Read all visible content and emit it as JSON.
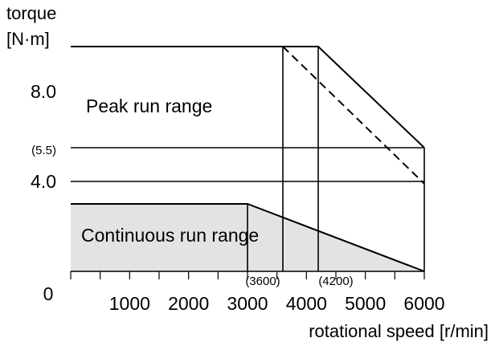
{
  "chart_data": {
    "type": "line",
    "ylabel_line1": "torque",
    "ylabel_line2": "[N·m]",
    "xlabel": "rotational speed [r/min]",
    "xlim": [
      0,
      6000
    ],
    "ylim": [
      0,
      10
    ],
    "x_ticks": [
      {
        "value": 1000,
        "label": "1000"
      },
      {
        "value": 2000,
        "label": "2000"
      },
      {
        "value": 3000,
        "label": "3000"
      },
      {
        "value": 4000,
        "label": "4000"
      },
      {
        "value": 5000,
        "label": "5000"
      },
      {
        "value": 6000,
        "label": "6000"
      }
    ],
    "y_ticks": [
      {
        "value": 0,
        "label": "0"
      },
      {
        "value": 4.0,
        "label": "4.0"
      },
      {
        "value": 5.5,
        "label": "(5.5)"
      },
      {
        "value": 8.0,
        "label": "8.0"
      }
    ],
    "annotations": [
      {
        "x": 3600,
        "label": "(3600)"
      },
      {
        "x": 4200,
        "label": "(4200)"
      }
    ],
    "regions": [
      {
        "name": "Peak run range",
        "label_x": 300,
        "label_y": 7.2
      },
      {
        "name": "Continuous run range",
        "label_x": 160,
        "label_y": 1.4,
        "fill": "#e3e3e3"
      }
    ],
    "series": [
      {
        "name": "Peak run range",
        "style": "solid",
        "points": [
          [
            0,
            10
          ],
          [
            4200,
            10
          ],
          [
            6000,
            5.5
          ]
        ]
      },
      {
        "name": "",
        "style": "dashed",
        "points": [
          [
            3600,
            10
          ],
          [
            6000,
            3.9
          ]
        ]
      },
      {
        "name": "Continuous run range",
        "style": "solid",
        "points": [
          [
            0,
            3.0
          ],
          [
            3000,
            3.0
          ],
          [
            6000,
            0
          ]
        ]
      }
    ],
    "reference_lines": {
      "horizontal": [
        4.0,
        5.5
      ],
      "vertical": [
        3000,
        3600,
        4200,
        6000
      ]
    }
  }
}
